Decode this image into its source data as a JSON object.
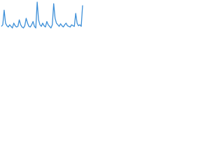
{
  "chart_data": {
    "type": "line",
    "color": "#3d8fd8",
    "values": [
      20,
      25,
      70,
      30,
      22,
      18,
      25,
      20,
      15,
      30,
      22,
      18,
      20,
      40,
      25,
      18,
      15,
      22,
      45,
      30,
      20,
      18,
      25,
      35,
      20,
      15,
      95,
      40,
      25,
      20,
      30,
      22,
      18,
      35,
      25,
      20,
      15,
      25,
      90,
      45,
      30,
      25,
      20,
      28,
      22,
      18,
      25,
      30,
      22,
      20,
      18,
      25,
      22,
      20,
      60,
      30,
      22,
      25,
      20,
      85
    ]
  }
}
